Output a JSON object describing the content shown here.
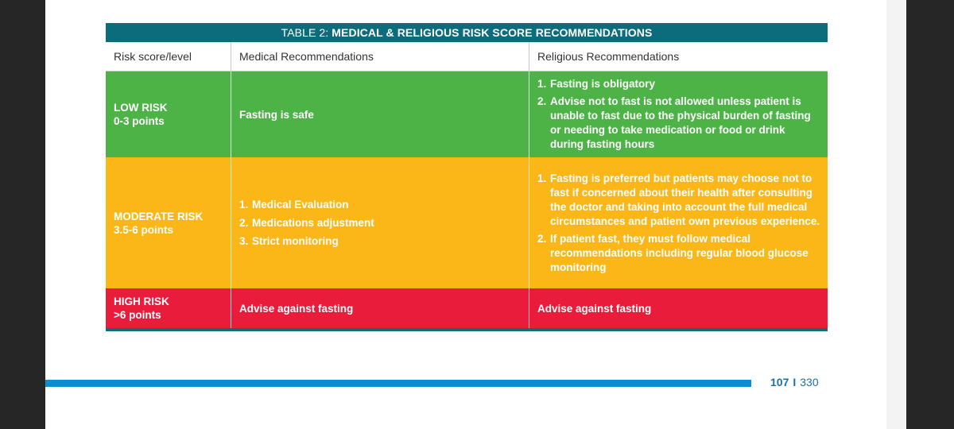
{
  "table": {
    "title_prefix": "TABLE 2:",
    "title_main": "MEDICAL & RELIGIOUS RISK SCORE RECOMMENDATIONS",
    "headers": [
      "Risk score/level",
      "Medical Recommendations",
      "Religious Recommendations"
    ],
    "rows": [
      {
        "level": "LOW RISK",
        "points": "0-3 points",
        "medical": "Fasting is safe",
        "religious": [
          {
            "num": "1.",
            "text": "Fasting is obligatory"
          },
          {
            "num": "2.",
            "text": "Advise not to fast is not allowed unless patient is unable to fast due to the physical burden of fasting or needing to take medication or food or drink during fasting hours"
          }
        ]
      },
      {
        "level": "MODERATE RISK",
        "points": "3.5-6 points",
        "medical": [
          {
            "num": "1.",
            "text": "Medical Evaluation"
          },
          {
            "num": "2.",
            "text": "Medications adjustment"
          },
          {
            "num": "3.",
            "text": "Strict monitoring"
          }
        ],
        "religious": [
          {
            "num": "1.",
            "text": "Fasting is preferred but patients may choose not to fast if concerned about their health after consulting the doctor and taking into account the full medical circumstances and patient own previous experience."
          },
          {
            "num": "2.",
            "text": "If patient fast, they must follow medical recommendations including regular blood glucose monitoring"
          }
        ]
      },
      {
        "level": "HIGH RISK",
        "points": ">6 points",
        "medical": "Advise against fasting",
        "religious": "Advise against fasting"
      }
    ]
  },
  "footer": {
    "page_current": "107",
    "separator": "I",
    "page_total": "330"
  },
  "colors": {
    "title_bar": "#0c6c7c",
    "low_risk": "#4db347",
    "moderate_risk": "#fbb718",
    "high_risk": "#e91c3b",
    "footer_bar": "#0a8ed3",
    "page_number": "#1e6fa8"
  }
}
